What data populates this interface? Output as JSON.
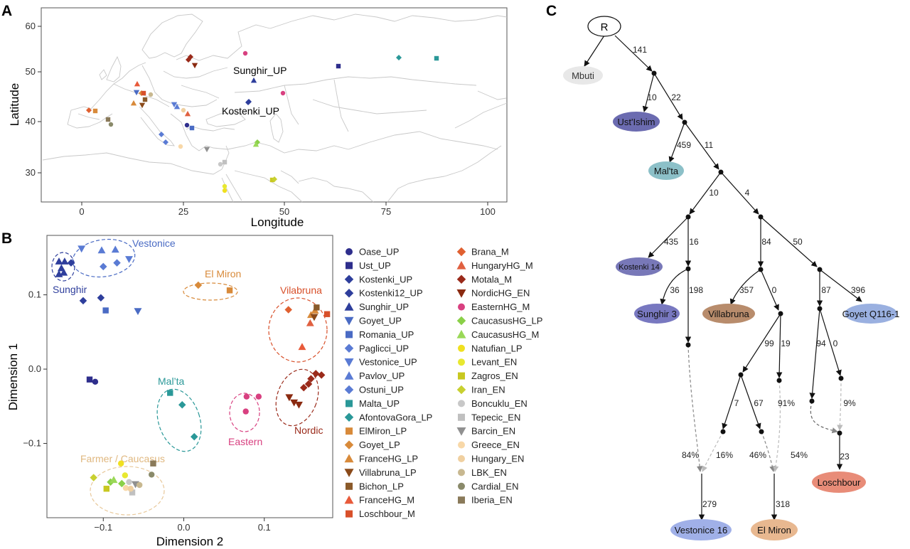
{
  "panels": {
    "A": "A",
    "B": "B",
    "C": "C"
  },
  "map": {
    "xlabel": "Longitude",
    "ylabel": "Latitude",
    "xticks": [
      "0",
      "25",
      "50",
      "75",
      "100"
    ],
    "yticks": [
      "30",
      "40",
      "50",
      "60"
    ],
    "site_labels": [
      {
        "key": "sunghir",
        "text": "Sunghir_UP"
      },
      {
        "key": "kostenki",
        "text": "Kostenki_UP"
      }
    ]
  },
  "chart_data": {
    "type": "scatter",
    "xlabel": "Dimension 2",
    "ylabel": "Dimension 1",
    "xlim": [
      -0.17,
      0.185
    ],
    "ylim": [
      -0.2,
      0.18
    ],
    "xticks": [
      "−0.1",
      "0.0",
      "0.1"
    ],
    "yticks": [
      "−0.1",
      "0.0",
      "0.1"
    ],
    "cluster_labels": [
      "Vestonice",
      "Sunghir",
      "El Miron",
      "Vilabruna",
      "Mal’ta",
      "Eastern",
      "Nordic",
      "Farmer / Caucasus"
    ],
    "legend": {
      "col1": [
        "Oase_UP",
        "Ust_UP",
        "Kostenki_UP",
        "Kostenki12_UP",
        "Sunghir_UP",
        "Goyet_UP",
        "Romania_UP",
        "Paglicci_UP",
        "Vestonice_UP",
        "Pavlov_UP",
        "Ostuni_UP",
        "Malta_UP",
        "AfontovaGora_LP",
        "ElMiron_LP",
        "Goyet_LP",
        "FranceHG_LP",
        "Villabruna_LP",
        "Bichon_LP",
        "FranceHG_M",
        "Loschbour_M"
      ],
      "col2": [
        "Brana_M",
        "HungaryHG_M",
        "Motala_M",
        "NordicHG_EN",
        "EasternHG_M",
        "CaucasusHG_LP",
        "CaucasusHG_M",
        "Natufian_LP",
        "Levant_EN",
        "Zagros_EN",
        "Iran_EN",
        "Boncuklu_EN",
        "Tepecic_EN",
        "Barcin_EN",
        "Greece_EN",
        "Hungary_EN",
        "LBK_EN",
        "Cardial_EN",
        "Iberia_EN"
      ]
    },
    "colors": {
      "Oase_UP": "#2e2e8c",
      "Ust_UP": "#2e2e8c",
      "Kostenki_UP": "#2e3e9c",
      "Kostenki12_UP": "#2e3e9c",
      "Sunghir_UP": "#2e3e9c",
      "Goyet_UP": "#4a6bc4",
      "Romania_UP": "#4a6bc4",
      "Paglicci_UP": "#5a7bd4",
      "Vestonice_UP": "#5a7bd4",
      "Pavlov_UP": "#5a7bd4",
      "Ostuni_UP": "#5a7bd4",
      "Malta_UP": "#2a9898",
      "AfontovaGora_LP": "#2a9898",
      "ElMiron_LP": "#d88a3a",
      "Goyet_LP": "#d88a3a",
      "FranceHG_LP": "#d88a3a",
      "Villabruna_LP": "#8a4a1a",
      "Bichon_LP": "#8a5a2a",
      "FranceHG_M": "#e85a3a",
      "Loschbour_M": "#d8502a",
      "Brana_M": "#e06030",
      "HungaryHG_M": "#e06040",
      "Motala_M": "#9a2a1a",
      "NordicHG_EN": "#8a2a10",
      "EasternHG_M": "#d84080",
      "CaucasusHG_LP": "#8ad048",
      "CaucasusHG_M": "#9ad858",
      "Natufian_LP": "#f0e020",
      "Levant_EN": "#e8e830",
      "Zagros_EN": "#c8c820",
      "Iran_EN": "#c8d030",
      "Boncuklu_EN": "#c8c8c8",
      "Tepecic_EN": "#c0c0c0",
      "Barcin_EN": "#909090",
      "Greece_EN": "#f8d8a8",
      "Hungary_EN": "#f0d0a0",
      "LBK_EN": "#c8b890",
      "Cardial_EN": "#8a8a6a",
      "Iberia_EN": "#8a7a5a"
    },
    "points": [
      {
        "g": "Oase_UP",
        "x": -0.11,
        "y": -0.017
      },
      {
        "g": "Ust_UP",
        "x": -0.117,
        "y": -0.014
      },
      {
        "g": "Kostenki_UP",
        "x": -0.125,
        "y": 0.092
      },
      {
        "g": "Kostenki12_UP",
        "x": -0.103,
        "y": 0.096
      },
      {
        "g": "Sunghir_UP",
        "x": -0.155,
        "y": 0.145
      },
      {
        "g": "Sunghir_UP",
        "x": -0.148,
        "y": 0.145
      },
      {
        "g": "Sunghir_UP",
        "x": -0.152,
        "y": 0.136
      },
      {
        "g": "Sunghir_UP",
        "x": -0.155,
        "y": 0.128
      },
      {
        "g": "Sunghir_UP",
        "x": -0.149,
        "y": 0.13
      },
      {
        "g": "Kostenki_UP",
        "x": -0.14,
        "y": 0.143
      },
      {
        "g": "Goyet_UP",
        "x": -0.057,
        "y": 0.078
      },
      {
        "g": "Romania_UP",
        "x": -0.097,
        "y": 0.079
      },
      {
        "g": "Paglicci_UP",
        "x": -0.1,
        "y": 0.138
      },
      {
        "g": "Vestonice_UP",
        "x": -0.127,
        "y": 0.162
      },
      {
        "g": "Vestonice_UP",
        "x": -0.068,
        "y": 0.148
      },
      {
        "g": "Pavlov_UP",
        "x": -0.102,
        "y": 0.16
      },
      {
        "g": "Pavlov_UP",
        "x": -0.085,
        "y": 0.161
      },
      {
        "g": "Ostuni_UP",
        "x": -0.083,
        "y": 0.143
      },
      {
        "g": "Malta_UP",
        "x": -0.017,
        "y": -0.032
      },
      {
        "g": "AfontovaGora_LP",
        "x": -0.002,
        "y": -0.048
      },
      {
        "g": "AfontovaGora_LP",
        "x": 0.013,
        "y": -0.091
      },
      {
        "g": "ElMiron_LP",
        "x": 0.057,
        "y": 0.106
      },
      {
        "g": "Goyet_LP",
        "x": 0.018,
        "y": 0.113
      },
      {
        "g": "Brana_M",
        "x": 0.13,
        "y": 0.08
      },
      {
        "g": "FranceHG_LP",
        "x": 0.158,
        "y": 0.073
      },
      {
        "g": "FranceHG_LP",
        "x": 0.163,
        "y": 0.079
      },
      {
        "g": "Villabruna_LP",
        "x": 0.162,
        "y": 0.07
      },
      {
        "g": "Bichon_LP",
        "x": 0.165,
        "y": 0.083
      },
      {
        "g": "Loschbour_M",
        "x": 0.178,
        "y": 0.074
      },
      {
        "g": "FranceHG_M",
        "x": 0.147,
        "y": 0.03
      },
      {
        "g": "HungaryHG_M",
        "x": 0.157,
        "y": 0.062
      },
      {
        "g": "Motala_M",
        "x": 0.158,
        "y": -0.013
      },
      {
        "g": "Motala_M",
        "x": 0.164,
        "y": -0.006
      },
      {
        "g": "Motala_M",
        "x": 0.171,
        "y": -0.008
      },
      {
        "g": "Motala_M",
        "x": 0.155,
        "y": -0.02
      },
      {
        "g": "Motala_M",
        "x": 0.149,
        "y": -0.025
      },
      {
        "g": "NordicHG_EN",
        "x": 0.131,
        "y": -0.038
      },
      {
        "g": "NordicHG_EN",
        "x": 0.137,
        "y": -0.045
      },
      {
        "g": "NordicHG_EN",
        "x": 0.143,
        "y": -0.048
      },
      {
        "g": "EasternHG_M",
        "x": 0.078,
        "y": -0.037
      },
      {
        "g": "EasternHG_M",
        "x": 0.093,
        "y": -0.037
      },
      {
        "g": "EasternHG_M",
        "x": 0.077,
        "y": -0.057
      },
      {
        "g": "CaucasusHG_LP",
        "x": -0.091,
        "y": -0.152
      },
      {
        "g": "CaucasusHG_LP",
        "x": -0.077,
        "y": -0.154
      },
      {
        "g": "CaucasusHG_M",
        "x": -0.087,
        "y": -0.149
      },
      {
        "g": "Natufian_LP",
        "x": -0.078,
        "y": -0.127
      },
      {
        "g": "Levant_EN",
        "x": -0.073,
        "y": -0.143
      },
      {
        "g": "Zagros_EN",
        "x": -0.096,
        "y": -0.161
      },
      {
        "g": "Iran_EN",
        "x": -0.112,
        "y": -0.146
      },
      {
        "g": "Boncuklu_EN",
        "x": -0.068,
        "y": -0.152
      },
      {
        "g": "Tepecic_EN",
        "x": -0.064,
        "y": -0.166
      },
      {
        "g": "Barcin_EN",
        "x": -0.06,
        "y": -0.155
      },
      {
        "g": "Greece_EN",
        "x": -0.072,
        "y": -0.16
      },
      {
        "g": "Hungary_EN",
        "x": -0.066,
        "y": -0.161
      },
      {
        "g": "LBK_EN",
        "x": -0.055,
        "y": -0.156
      },
      {
        "g": "Cardial_EN",
        "x": -0.04,
        "y": -0.142
      },
      {
        "g": "Iberia_EN",
        "x": -0.038,
        "y": -0.127
      }
    ]
  },
  "tree": {
    "root": "R",
    "leaves": [
      "Mbuti",
      "Ust'Ishim",
      "Mal'ta",
      "Kostenki 14",
      "Sunghir 3",
      "Villabruna",
      "Goyet Q116-1",
      "Loschbour",
      "Vestonice 16",
      "El Miron"
    ],
    "leaf_colors": {
      "Mbuti": "#e8e8e8",
      "Ust'Ishim": "#6b6bb0",
      "Mal'ta": "#8cc0c8",
      "Kostenki 14": "#7878b8",
      "Sunghir 3": "#7878c0",
      "Villabruna": "#b88c6c",
      "Goyet Q116-1": "#9ab0e0",
      "Loschbour": "#e88c78",
      "Vestonice 16": "#a0b0e8",
      "El Miron": "#e8b890"
    },
    "edge_labels": [
      "141",
      "10",
      "22",
      "459",
      "11",
      "10",
      "4",
      "435",
      "16",
      "84",
      "50",
      "36",
      "198",
      "357",
      "0",
      "87",
      "396",
      "99",
      "19",
      "94",
      "0",
      "7",
      "67",
      "279",
      "318",
      "23"
    ],
    "admixture_labels": [
      "84%",
      "16%",
      "46%",
      "54%",
      "91%",
      "9%"
    ]
  }
}
